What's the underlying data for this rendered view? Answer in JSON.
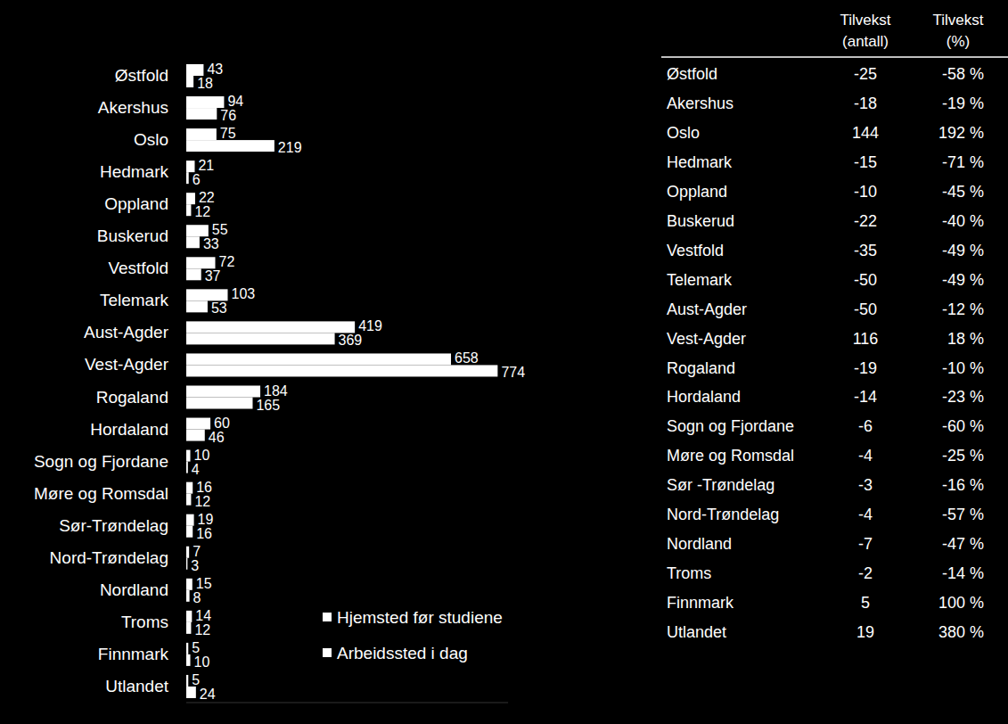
{
  "chart_data": {
    "type": "bar",
    "orientation": "horizontal",
    "data_labels": true,
    "tick_labels": "y",
    "legend": "right",
    "categories": [
      "Østfold",
      "Akershus",
      "Oslo",
      "Hedmark",
      "Oppland",
      "Buskerud",
      "Vestfold",
      "Telemark",
      "Aust-Agder",
      "Vest-Agder",
      "Rogaland",
      "Hordaland",
      "Sogn og Fjordane",
      "Møre og Romsdal",
      "Sør-Trøndelag",
      "Nord-Trøndelag",
      "Nordland",
      "Troms",
      "Finnmark",
      "Utlandet"
    ],
    "series": [
      {
        "name": "Hjemsted før studiene",
        "color": "#ffffff",
        "values": [
          43,
          94,
          75,
          21,
          22,
          55,
          72,
          103,
          419,
          658,
          184,
          60,
          10,
          16,
          19,
          7,
          15,
          14,
          5,
          5
        ]
      },
      {
        "name": "Arbeidssted i dag",
        "color": "#ffffff",
        "values": [
          18,
          76,
          219,
          6,
          12,
          33,
          37,
          53,
          369,
          774,
          165,
          46,
          4,
          12,
          16,
          3,
          8,
          12,
          10,
          24
        ]
      }
    ],
    "xlim": [
      0,
      800
    ],
    "xticks": []
  },
  "table": {
    "header": [
      [
        "Tilvekst",
        "(antall)"
      ],
      [
        "Tilvekst",
        "(%)"
      ]
    ],
    "rows": [
      [
        "Østfold",
        -25,
        "-58 %"
      ],
      [
        "Akershus",
        -18,
        "-19 %"
      ],
      [
        "Oslo",
        144,
        "192 %"
      ],
      [
        "Hedmark",
        -15,
        "-71 %"
      ],
      [
        "Oppland",
        -10,
        "-45 %"
      ],
      [
        "Buskerud",
        -22,
        "-40 %"
      ],
      [
        "Vestfold",
        -35,
        "-49 %"
      ],
      [
        "Telemark",
        -50,
        "-49 %"
      ],
      [
        "Aust-Agder",
        -50,
        "-12 %"
      ],
      [
        "Vest-Agder",
        116,
        "18 %"
      ],
      [
        "Rogaland",
        -19,
        "-10 %"
      ],
      [
        "Hordaland",
        -14,
        "-23 %"
      ],
      [
        "Sogn og Fjordane",
        -6,
        "-60 %"
      ],
      [
        "Møre og Romsdal",
        -4,
        "-25 %"
      ],
      [
        "Sør -Trøndelag",
        -3,
        "-16 %"
      ],
      [
        "Nord-Trøndelag",
        -4,
        "-57 %"
      ],
      [
        "Nordland",
        -7,
        "-47 %"
      ],
      [
        "Troms",
        -2,
        "-14 %"
      ],
      [
        "Finnmark",
        5,
        "100 %"
      ],
      [
        "Utlandet",
        19,
        "380 %"
      ]
    ]
  }
}
